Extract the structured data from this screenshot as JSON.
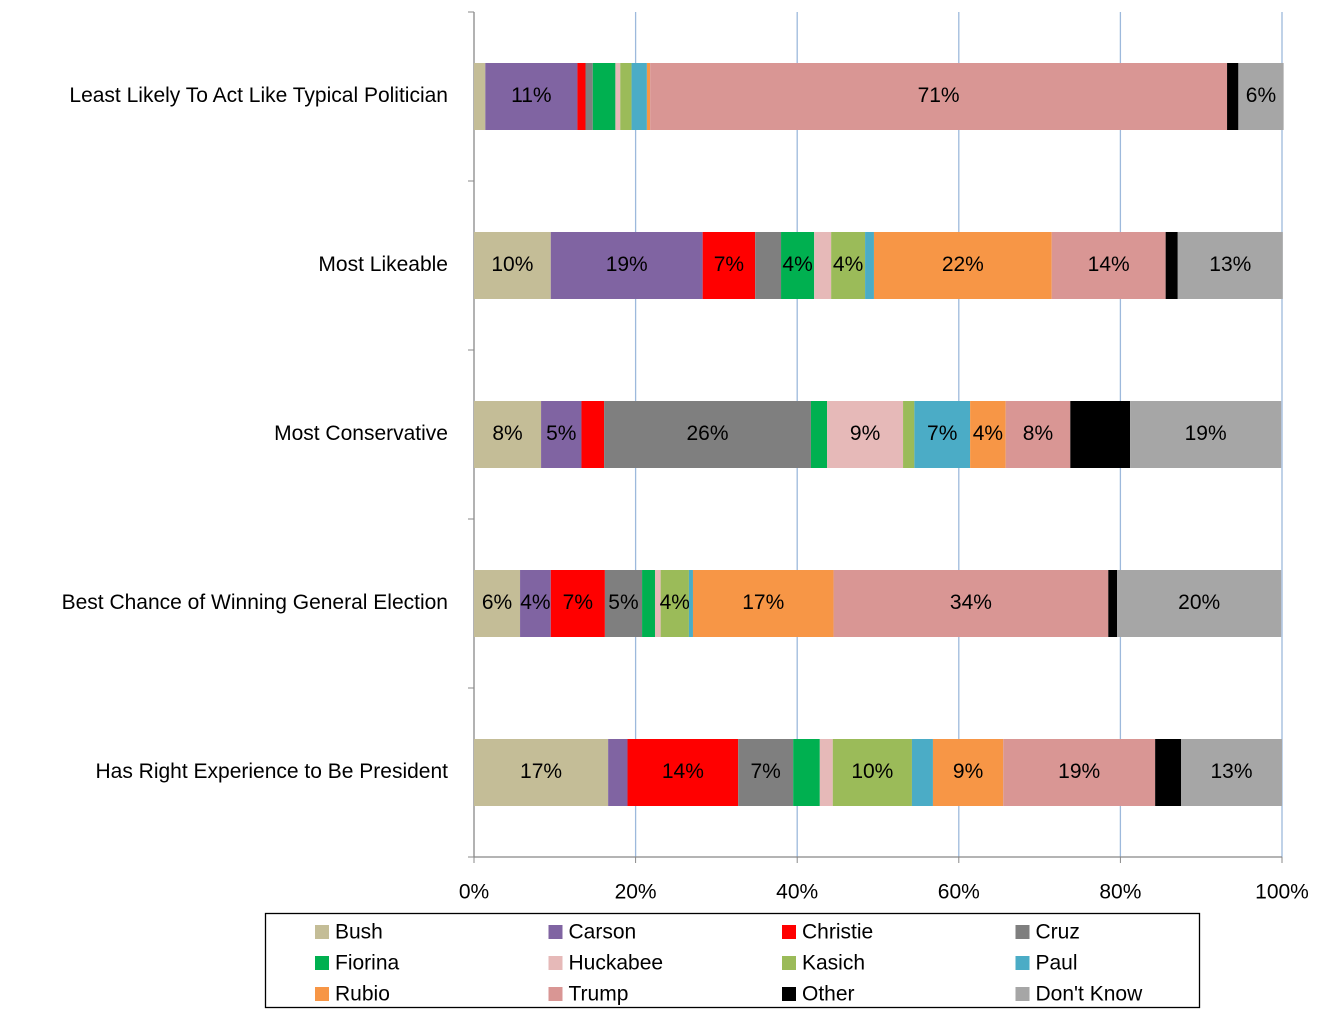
{
  "chart_data": {
    "type": "stacked-bar-horizontal",
    "categories": [
      "Least Likely To Act Like Typical Politician",
      "Most Likeable",
      "Most Conservative",
      "Best Chance of Winning General Election",
      "Has Right Experience to Be President"
    ],
    "series": [
      {
        "name": "Bush",
        "color": "#c4bd97",
        "values": [
          1.4,
          9.5,
          8.3,
          5.7,
          16.6
        ],
        "value_labels": [
          null,
          "10%",
          "8%",
          "6%",
          "17%"
        ]
      },
      {
        "name": "Carson",
        "color": "#8064a2",
        "values": [
          11.4,
          18.8,
          5,
          3.8,
          2.4
        ],
        "value_labels": [
          "11%",
          "19%",
          "5%",
          "4%",
          null
        ]
      },
      {
        "name": "Christie",
        "color": "#ff0000",
        "values": [
          1,
          6.5,
          2.8,
          6.7,
          13.7
        ],
        "value_labels": [
          null,
          "7%",
          null,
          "7%",
          "14%"
        ]
      },
      {
        "name": "Cruz",
        "color": "#7f7f7f",
        "values": [
          0.9,
          3.2,
          25.6,
          4.6,
          6.8
        ],
        "value_labels": [
          null,
          null,
          "26%",
          "5%",
          "7%"
        ]
      },
      {
        "name": "Fiorina",
        "color": "#00b050",
        "values": [
          2.8,
          4.1,
          2,
          1.6,
          3.3
        ],
        "value_labels": [
          null,
          "4%",
          null,
          null,
          null
        ]
      },
      {
        "name": "Huckabee",
        "color": "#e6b9b8",
        "values": [
          0.6,
          2.1,
          9.4,
          0.7,
          1.6
        ],
        "value_labels": [
          null,
          null,
          "9%",
          null,
          null
        ]
      },
      {
        "name": "Kasich",
        "color": "#9bbb59",
        "values": [
          1.4,
          4.2,
          1.4,
          3.5,
          9.8
        ],
        "value_labels": [
          null,
          "4%",
          null,
          "4%",
          "10%"
        ]
      },
      {
        "name": "Paul",
        "color": "#4bacc6",
        "values": [
          1.9,
          1.1,
          6.9,
          0.5,
          2.6
        ],
        "value_labels": [
          null,
          null,
          "7%",
          null,
          null
        ]
      },
      {
        "name": "Rubio",
        "color": "#f79646",
        "values": [
          0.4,
          22,
          4.4,
          17.4,
          8.7
        ],
        "value_labels": [
          null,
          "22%",
          "4%",
          "17%",
          "9%"
        ]
      },
      {
        "name": "Trump",
        "color": "#d99694",
        "values": [
          71.4,
          14.1,
          8,
          34,
          18.8
        ],
        "value_labels": [
          "71%",
          "14%",
          "8%",
          "34%",
          "19%"
        ]
      },
      {
        "name": "Other",
        "color": "#000000",
        "values": [
          1.4,
          1.5,
          7.4,
          1.1,
          3.2
        ],
        "value_labels": [
          null,
          null,
          null,
          null,
          null
        ]
      },
      {
        "name": "Don't Know",
        "color": "#a6a6a6",
        "values": [
          5.6,
          13,
          18.7,
          20.3,
          12.5
        ],
        "value_labels": [
          "6%",
          "13%",
          "19%",
          "20%",
          "13%"
        ]
      }
    ],
    "xlim": [
      0,
      100
    ],
    "xticks": [
      {
        "value": 0,
        "label": "0%"
      },
      {
        "value": 20,
        "label": "20%"
      },
      {
        "value": 40,
        "label": "40%"
      },
      {
        "value": 60,
        "label": "60%"
      },
      {
        "value": 80,
        "label": "80%"
      },
      {
        "value": 100,
        "label": "100%"
      }
    ],
    "grid": true
  }
}
